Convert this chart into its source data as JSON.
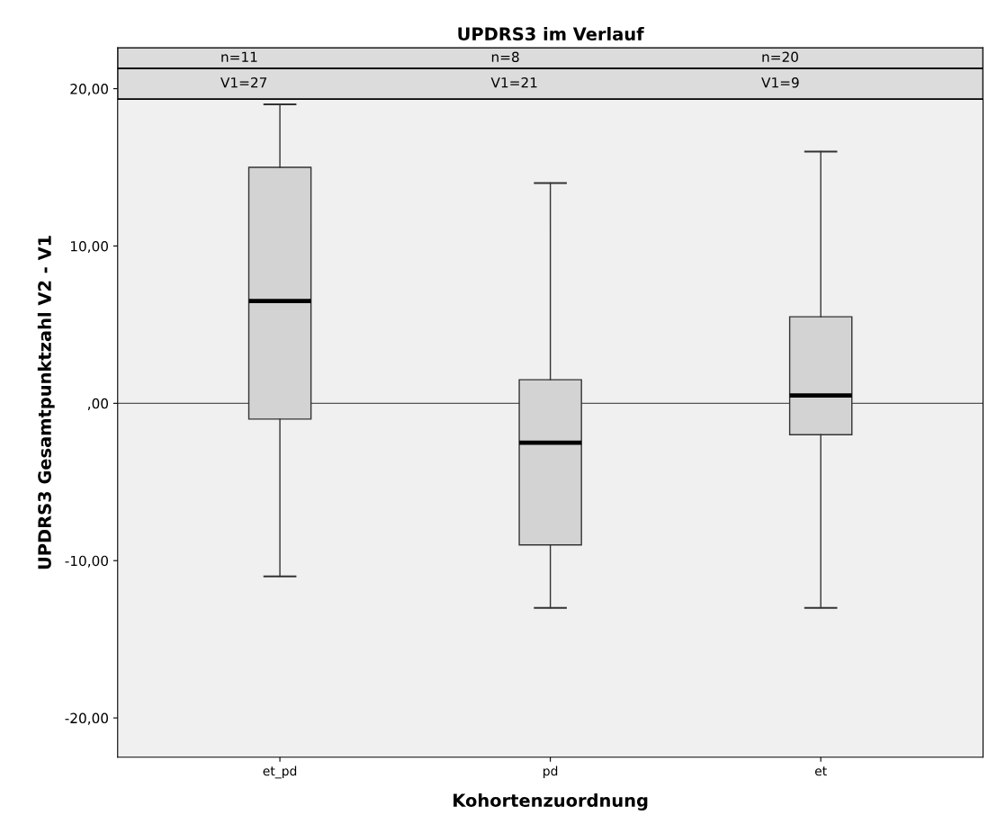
{
  "chart_data": {
    "type": "box",
    "title": "UPDRS3 im Verlauf",
    "xlabel": "Kohortenzuordnung",
    "ylabel": "UPDRS3 Gesamtpunktzahl V2 - V1",
    "categories": [
      "et_pd",
      "pd",
      "et"
    ],
    "boxes": [
      {
        "low": -11,
        "q1": -1,
        "median": 6.5,
        "q3": 15,
        "high": 19
      },
      {
        "low": -13,
        "q1": -9,
        "median": -2.5,
        "q3": 1.5,
        "high": 14
      },
      {
        "low": -13,
        "q1": -2,
        "median": 0.5,
        "q3": 5.5,
        "high": 16
      }
    ],
    "color": "#d3d3d3",
    "ylim": [
      -22.5,
      22.6
    ],
    "yticks": [
      {
        "value": -20,
        "label": "-20,00"
      },
      {
        "value": -10,
        "label": "-10,00"
      },
      {
        "value": 0,
        "label": ",00"
      },
      {
        "value": 10,
        "label": "10,00"
      },
      {
        "value": 20,
        "label": "20,00"
      }
    ],
    "ref_lines": [
      {
        "axis": "y",
        "value": 0,
        "label": null,
        "color": "#555555"
      }
    ],
    "annotations": [
      "n=11",
      "n=8",
      "n=20",
      "V1=27",
      "V1=21",
      "V1=9"
    ],
    "grid": false
  }
}
